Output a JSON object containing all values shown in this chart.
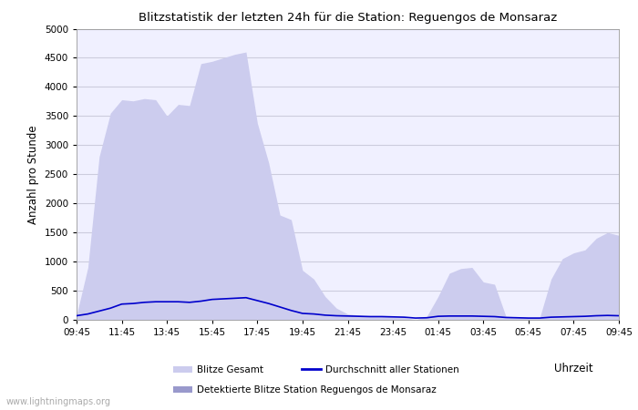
{
  "title": "Blitzstatistik der letzten 24h für die Station: Reguengos de Monsaraz",
  "xlabel": "Uhrzeit",
  "ylabel": "Anzahl pro Stunde",
  "xlabels": [
    "09:45",
    "11:45",
    "13:45",
    "15:45",
    "17:45",
    "19:45",
    "21:45",
    "23:45",
    "01:45",
    "03:45",
    "05:45",
    "07:45",
    "09:45"
  ],
  "ylim": [
    0,
    5000
  ],
  "yticks": [
    0,
    500,
    1000,
    1500,
    2000,
    2500,
    3000,
    3500,
    4000,
    4500,
    5000
  ],
  "bg_color": "#ffffff",
  "plot_bg_color": "#f0f0ff",
  "grid_color": "#ccccdd",
  "fill_total_color": "#ccccee",
  "fill_station_color": "#9999cc",
  "avg_line_color": "#0000cc",
  "watermark": "www.lightningmaps.org",
  "legend": {
    "blitze_gesamt": "Blitze Gesamt",
    "durchschnitt": "Durchschnitt aller Stationen",
    "detektierte": "Detektierte Blitze Station Reguengos de Monsaraz"
  },
  "x_indices": [
    0,
    1,
    2,
    3,
    4,
    5,
    6,
    7,
    8,
    9,
    10,
    11,
    12,
    13,
    14,
    15,
    16,
    17,
    18,
    19,
    20,
    21,
    22,
    23,
    24,
    25,
    26,
    27,
    28,
    29,
    30,
    31,
    32,
    33,
    34,
    35,
    36,
    37,
    38,
    39,
    40,
    41,
    42,
    43,
    44,
    45,
    46,
    47,
    48
  ],
  "y_total": [
    80,
    900,
    2800,
    3550,
    3780,
    3760,
    3800,
    3780,
    3500,
    3700,
    3680,
    4400,
    4440,
    4500,
    4560,
    4600,
    3380,
    2700,
    1800,
    1720,
    850,
    700,
    400,
    200,
    100,
    80,
    60,
    70,
    50,
    40,
    0,
    60,
    400,
    800,
    880,
    900,
    650,
    610,
    60,
    50,
    40,
    40,
    700,
    1050,
    1150,
    1200,
    1400,
    1500,
    1450
  ],
  "y_station": [
    0,
    0,
    0,
    0,
    0,
    0,
    0,
    0,
    0,
    0,
    0,
    0,
    0,
    0,
    0,
    0,
    0,
    0,
    0,
    0,
    0,
    0,
    0,
    0,
    0,
    0,
    0,
    0,
    0,
    0,
    0,
    0,
    0,
    0,
    0,
    0,
    0,
    0,
    0,
    0,
    0,
    0,
    0,
    0,
    0,
    0,
    0,
    0,
    0
  ],
  "y_avg": [
    70,
    100,
    150,
    200,
    270,
    280,
    300,
    310,
    310,
    310,
    300,
    320,
    350,
    360,
    370,
    380,
    330,
    280,
    220,
    160,
    110,
    100,
    80,
    70,
    65,
    60,
    55,
    55,
    50,
    45,
    30,
    35,
    60,
    65,
    65,
    65,
    60,
    55,
    40,
    35,
    30,
    30,
    45,
    50,
    55,
    60,
    70,
    75,
    70
  ]
}
